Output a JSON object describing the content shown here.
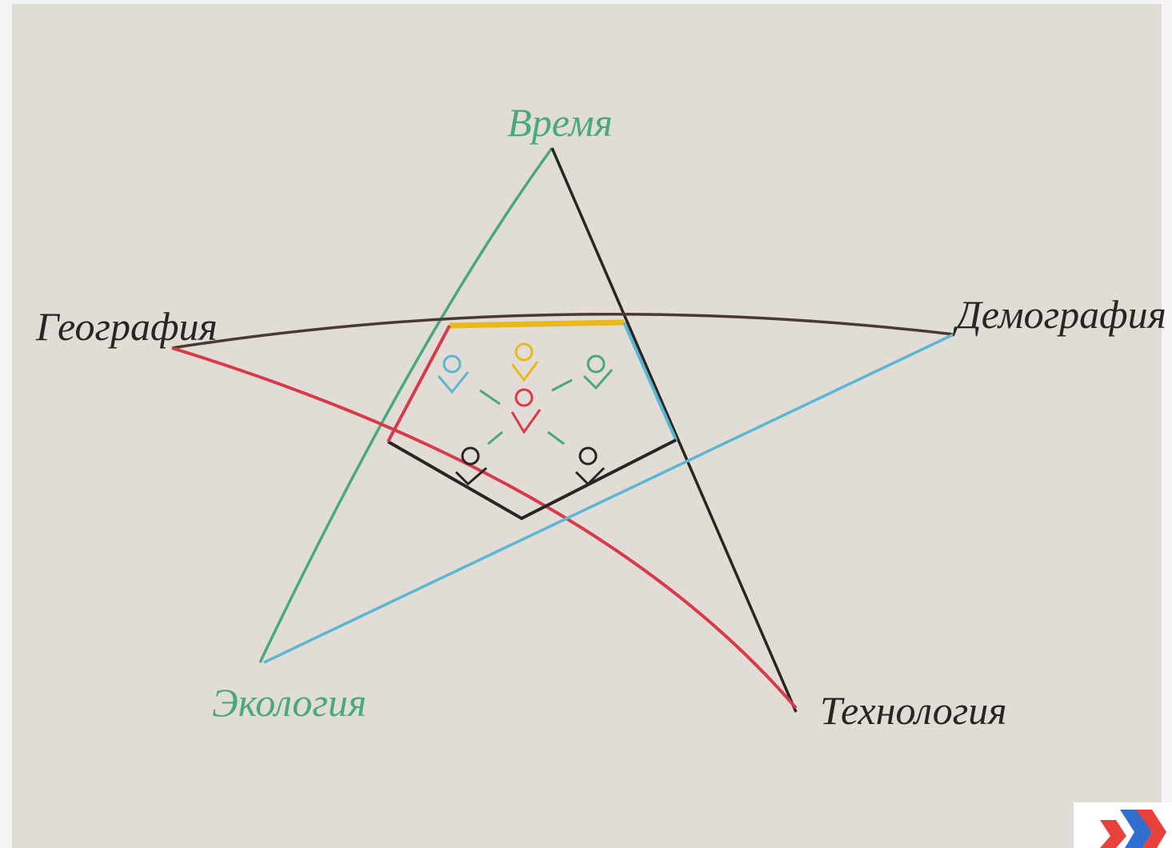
{
  "nodes": [
    {
      "label": "Время"
    },
    {
      "label": "География"
    },
    {
      "label": "Демография"
    },
    {
      "label": "Экология"
    },
    {
      "label": "Технология"
    }
  ]
}
